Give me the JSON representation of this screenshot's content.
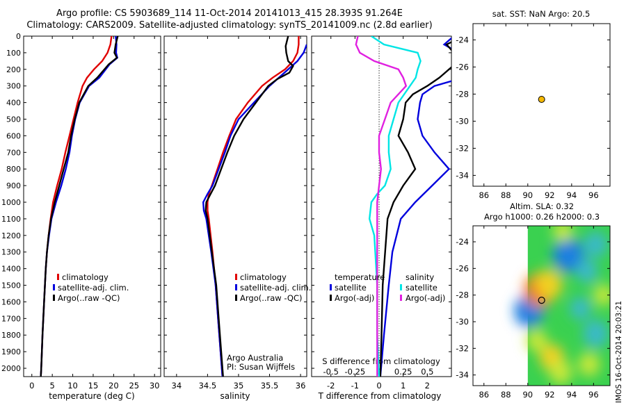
{
  "header": {
    "line1": "Argo profile: CS 5903689_114 11-Oct-2014 20141013_415 28.393S 91.264E",
    "line2": "Climatology: CARS2009. Satellite-adjusted climatology: synTS_20141009.nc (2.8d earlier)"
  },
  "stamp": "IMOS 16-Oct-2014 20:03:21",
  "colors": {
    "climatology": "#e00000",
    "satellite": "#0000dd",
    "argo": "#000000",
    "s_satellite": "#00e5e5",
    "s_argo": "#e020e0"
  },
  "depth_axis": {
    "ylim": [
      0,
      2050
    ],
    "ticks": [
      "0",
      "100",
      "200",
      "300",
      "400",
      "500",
      "600",
      "700",
      "800",
      "900",
      "1000",
      "1100",
      "1200",
      "1300",
      "1400",
      "1500",
      "1600",
      "1700",
      "1800",
      "1900",
      "2000"
    ]
  },
  "chart_data": [
    {
      "id": "temperature",
      "type": "line",
      "xlabel": "temperature (deg C)",
      "xlim": [
        -2,
        31.5
      ],
      "xticks": [
        "0",
        "5",
        "10",
        "15",
        "20",
        "25",
        "30"
      ],
      "legend": [
        "climatology",
        "satellite-adj. clim.",
        "Argo(..raw -QC)"
      ],
      "series": [
        {
          "name": "climatology",
          "depth": [
            0,
            50,
            100,
            150,
            200,
            250,
            300,
            400,
            500,
            600,
            700,
            800,
            900,
            1000,
            1100,
            1200,
            1300,
            1400,
            1500,
            1600,
            1800,
            2000,
            2050
          ],
          "values": [
            19.5,
            19.2,
            18.5,
            17.2,
            15.2,
            13.5,
            12.4,
            11.2,
            10.2,
            9.2,
            8.2,
            7.3,
            6.2,
            5.2,
            4.6,
            4.1,
            3.7,
            3.4,
            3.2,
            3.0,
            2.6,
            2.3,
            2.2
          ]
        },
        {
          "name": "satellite-adj. clim.",
          "depth": [
            0,
            50,
            100,
            130,
            170,
            250,
            300,
            400,
            500,
            600,
            700,
            800,
            900,
            1000,
            1100,
            1200,
            1300,
            1400,
            1500,
            1600,
            1800,
            2000,
            2050
          ],
          "values": [
            20.5,
            20.7,
            20.6,
            20.9,
            19.0,
            16.5,
            14.0,
            11.7,
            10.6,
            9.8,
            9.2,
            8.3,
            7.2,
            5.9,
            4.8,
            4.2,
            3.7,
            3.4,
            3.2,
            3.0,
            2.6,
            2.3,
            2.2
          ]
        },
        {
          "name": "Argo(..raw -QC)",
          "depth": [
            0,
            50,
            100,
            130,
            170,
            250,
            300,
            400,
            500,
            600,
            700,
            800,
            900,
            1000,
            1100,
            1200,
            1300,
            1400,
            1500,
            1600,
            1800,
            2000,
            2050
          ],
          "values": [
            21.0,
            20.5,
            20.2,
            20.8,
            18.8,
            16.0,
            13.8,
            11.6,
            10.5,
            9.6,
            8.9,
            7.8,
            6.7,
            5.6,
            4.7,
            4.1,
            3.7,
            3.4,
            3.2,
            3.0,
            2.6,
            2.3,
            2.2
          ]
        }
      ]
    },
    {
      "id": "salinity",
      "type": "line",
      "xlabel": "salinity",
      "xlim": [
        33.8,
        36.1
      ],
      "xticks": [
        "34",
        "34.5",
        "35",
        "35.5",
        "36"
      ],
      "legend": [
        "climatology",
        "satellite-adj. clim.",
        "Argo(..raw -QC)"
      ],
      "annotation": [
        "Argo Australia",
        "PI: Susan Wijffels"
      ],
      "series": [
        {
          "name": "climatology",
          "depth": [
            0,
            50,
            100,
            150,
            200,
            250,
            300,
            400,
            500,
            600,
            700,
            800,
            900,
            950,
            1000,
            1050,
            1100,
            1300,
            1500,
            1700,
            1900,
            2050
          ],
          "values": [
            35.97,
            35.97,
            35.95,
            35.88,
            35.75,
            35.55,
            35.38,
            35.15,
            34.96,
            34.85,
            34.75,
            34.66,
            34.57,
            34.52,
            34.5,
            34.5,
            34.52,
            34.58,
            34.63,
            34.67,
            34.71,
            34.74
          ]
        },
        {
          "name": "satellite-adj. clim.",
          "depth": [
            50,
            100,
            150,
            200,
            250,
            300,
            400,
            500,
            600,
            700,
            800,
            900,
            950,
            1000,
            1050,
            1100,
            1300,
            1500,
            1700,
            1900,
            2050
          ],
          "values": [
            36.1,
            36.05,
            35.95,
            35.8,
            35.65,
            35.5,
            35.25,
            35.0,
            34.87,
            34.78,
            34.68,
            34.58,
            34.5,
            34.43,
            34.44,
            34.48,
            34.56,
            34.63,
            34.67,
            34.71,
            34.74
          ]
        },
        {
          "name": "Argo(..raw -QC)",
          "depth": [
            0,
            30,
            60,
            100,
            150,
            180,
            220,
            260,
            300,
            400,
            500,
            600,
            700,
            800,
            900,
            950,
            1000,
            1050,
            1100,
            1300,
            1500,
            1700,
            1900,
            2050
          ],
          "values": [
            35.8,
            35.78,
            35.76,
            35.77,
            35.8,
            35.88,
            35.82,
            35.62,
            35.48,
            35.28,
            35.08,
            34.93,
            34.82,
            34.72,
            34.62,
            34.55,
            34.48,
            34.47,
            34.5,
            34.57,
            34.64,
            34.68,
            34.72,
            34.75
          ]
        }
      ]
    },
    {
      "id": "difference",
      "type": "line",
      "xlabel": "T difference from climatology",
      "xlim": [
        -2.8,
        3.0
      ],
      "xticks": [
        "-2",
        "-1",
        "0",
        "1",
        "2"
      ],
      "x2label": "S difference from climatology",
      "x2ticks": [
        "-0.5",
        "-0.25",
        "0",
        "0.25",
        "0.5"
      ],
      "legend_headers": [
        "temperature",
        "salinity"
      ],
      "legend": [
        "satellite",
        "Argo(-adj)",
        "satellite",
        "Argo(-adj)"
      ],
      "series": [
        {
          "name": "T satellite",
          "depth": [
            0,
            50,
            100,
            150,
            200,
            250,
            300,
            350,
            400,
            500,
            600,
            700,
            800,
            900,
            1000,
            1100,
            1300,
            1500,
            1800,
            2050
          ],
          "values": [
            3.1,
            2.7,
            3.3,
            3.5,
            3.7,
            3.5,
            2.3,
            1.8,
            1.7,
            1.6,
            1.8,
            2.3,
            2.9,
            2.2,
            1.5,
            0.9,
            0.55,
            0.4,
            0.2,
            0.05
          ]
        },
        {
          "name": "T Argo(-adj)",
          "depth": [
            0,
            50,
            100,
            150,
            200,
            250,
            300,
            350,
            400,
            500,
            600,
            700,
            800,
            900,
            1000,
            1100,
            1300,
            1500,
            1800,
            2050
          ],
          "values": [
            3.5,
            2.8,
            3.1,
            3.3,
            2.9,
            2.5,
            2.0,
            1.4,
            1.1,
            1.0,
            0.8,
            1.2,
            1.5,
            1.0,
            0.6,
            0.35,
            0.25,
            0.15,
            0.1,
            0.05
          ]
        },
        {
          "name": "S satellite",
          "depth": [
            0,
            50,
            100,
            150,
            200,
            250,
            300,
            400,
            500,
            600,
            700,
            800,
            900,
            950,
            1000,
            1100,
            1200,
            1500,
            1800,
            2050
          ],
          "values": [
            -0.08,
            0.05,
            0.4,
            0.43,
            0.4,
            0.38,
            0.32,
            0.2,
            0.15,
            0.1,
            0.1,
            0.12,
            0.06,
            -0.02,
            -0.08,
            -0.1,
            -0.05,
            -0.02,
            -0.02,
            0.0
          ]
        },
        {
          "name": "S Argo(-adj)",
          "depth": [
            0,
            50,
            100,
            150,
            200,
            250,
            300,
            400,
            500,
            600,
            700,
            800,
            900,
            1000,
            1100,
            1200,
            1500,
            1800,
            2050
          ],
          "values": [
            -0.22,
            -0.24,
            -0.2,
            -0.05,
            0.2,
            0.25,
            0.28,
            0.12,
            0.06,
            0.0,
            0.0,
            0.02,
            0.0,
            -0.02,
            -0.02,
            -0.02,
            -0.02,
            -0.02,
            -0.02
          ]
        }
      ]
    },
    {
      "id": "sst_map",
      "type": "scatter",
      "title": "sat. SST: NaN Argo: 20.5",
      "xlim": [
        85,
        97.5
      ],
      "ylim": [
        -34.8,
        -22.8
      ],
      "xticks": [
        "86",
        "88",
        "90",
        "92",
        "94",
        "96"
      ],
      "yticks": [
        "-24",
        "-26",
        "-28",
        "-30",
        "-32",
        "-34"
      ],
      "points": [
        {
          "lon": 91.26,
          "lat": -28.39
        }
      ]
    },
    {
      "id": "sla_map",
      "type": "heatmap",
      "title": [
        "Altim. SLA: 0.32",
        "Argo h1000: 0.26 h2000: 0.3"
      ],
      "xlim": [
        85,
        97.5
      ],
      "ylim": [
        -34.8,
        -22.8
      ],
      "data_extent_lon": [
        90,
        97.5
      ],
      "xticks": [
        "86",
        "88",
        "90",
        "92",
        "94",
        "96"
      ],
      "yticks": [
        "-24",
        "-26",
        "-28",
        "-30",
        "-32",
        "-34"
      ],
      "points": [
        {
          "lon": 91.26,
          "lat": -28.39
        }
      ],
      "features": [
        {
          "lon": 93.7,
          "lat": -25.0,
          "level": -0.9
        },
        {
          "lon": 96.2,
          "lat": -24.2,
          "level": -0.5
        },
        {
          "lon": 90.1,
          "lat": -29.2,
          "level": -0.8
        },
        {
          "lon": 95.4,
          "lat": -26.2,
          "level": -0.4
        },
        {
          "lon": 91.1,
          "lat": -27.6,
          "level": 0.9
        },
        {
          "lon": 91.9,
          "lat": -27.2,
          "level": 0.7
        },
        {
          "lon": 96.2,
          "lat": -30.9,
          "level": -0.6
        },
        {
          "lon": 94.8,
          "lat": -29.0,
          "level": -0.35
        },
        {
          "lon": 92.2,
          "lat": -32.7,
          "level": 0.55
        },
        {
          "lon": 93.0,
          "lat": -33.8,
          "level": 0.45
        },
        {
          "lon": 95.6,
          "lat": -33.2,
          "level": 0.4
        },
        {
          "lon": 90.8,
          "lat": -31.4,
          "level": 0.35
        },
        {
          "lon": 96.9,
          "lat": -28.0,
          "level": 0.3
        },
        {
          "lon": 93.2,
          "lat": -23.2,
          "level": 0.3
        }
      ]
    }
  ]
}
